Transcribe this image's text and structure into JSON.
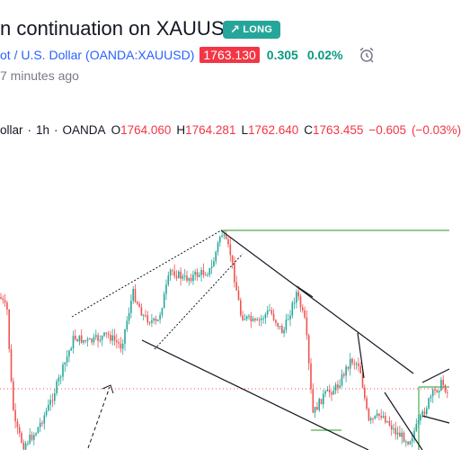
{
  "idea": {
    "title_visible": "n continuation on XAUUSD",
    "badge": "LONG",
    "badge_icon": "arrow-up-right-icon",
    "symbol_name": "ot / U.S. Dollar",
    "symbol_ticker": "(OANDA:XAUUSD)",
    "price": "1763.130",
    "change": "0.305",
    "change_pct": "0.02%",
    "time_ago": "7 minutes ago"
  },
  "legend": {
    "symbol": "ollar",
    "interval": "1h",
    "exchange": "OANDA",
    "o_label": "O",
    "o_value": "1764.060",
    "h_label": "H",
    "h_value": "1764.281",
    "l_label": "L",
    "l_value": "1762.640",
    "c_label": "C",
    "c_value": "1763.455",
    "change": "−0.605",
    "change_pct": "(−0.03%)"
  },
  "colors": {
    "up": "#26a69a",
    "down": "#ef5350",
    "accent": "#2962ff",
    "long_badge": "#26a69a",
    "price_box": "#f23645",
    "resistance_line": "#4caf50",
    "trendline": "#131722"
  }
}
